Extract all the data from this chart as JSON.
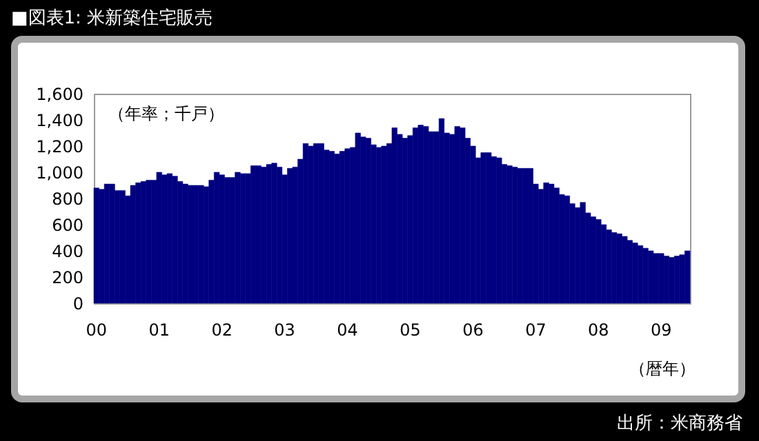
{
  "chart_data": {
    "type": "bar",
    "title": "■図表1: 米新築住宅販売",
    "ylabel": "（年率；千戸）",
    "xlabel": "（暦年）",
    "annotations": [
      "出所：米商務省"
    ],
    "categories": [
      "00",
      null,
      null,
      null,
      null,
      null,
      null,
      null,
      null,
      null,
      null,
      null,
      "01",
      null,
      null,
      null,
      null,
      null,
      null,
      null,
      null,
      null,
      null,
      null,
      "02",
      null,
      null,
      null,
      null,
      null,
      null,
      null,
      null,
      null,
      null,
      null,
      "03",
      null,
      null,
      null,
      null,
      null,
      null,
      null,
      null,
      null,
      null,
      null,
      "04",
      null,
      null,
      null,
      null,
      null,
      null,
      null,
      null,
      null,
      null,
      null,
      "05",
      null,
      null,
      null,
      null,
      null,
      null,
      null,
      null,
      null,
      null,
      null,
      "06",
      null,
      null,
      null,
      null,
      null,
      null,
      null,
      null,
      null,
      null,
      null,
      "07",
      null,
      null,
      null,
      null,
      null,
      null,
      null,
      null,
      null,
      null,
      null,
      "08",
      null,
      null,
      null,
      null,
      null,
      null,
      null,
      null,
      null,
      null,
      null,
      "09",
      null,
      null,
      null,
      null,
      null
    ],
    "values": [
      880,
      870,
      910,
      910,
      860,
      860,
      820,
      900,
      920,
      930,
      940,
      940,
      1000,
      980,
      990,
      970,
      930,
      910,
      900,
      900,
      900,
      890,
      940,
      1000,
      980,
      960,
      960,
      1000,
      990,
      990,
      1050,
      1050,
      1040,
      1060,
      1070,
      1040,
      980,
      1030,
      1040,
      1100,
      1220,
      1200,
      1220,
      1220,
      1170,
      1160,
      1140,
      1160,
      1180,
      1190,
      1300,
      1270,
      1260,
      1210,
      1190,
      1200,
      1220,
      1340,
      1290,
      1260,
      1280,
      1340,
      1360,
      1350,
      1310,
      1310,
      1410,
      1300,
      1290,
      1350,
      1340,
      1260,
      1200,
      1110,
      1150,
      1150,
      1120,
      1110,
      1060,
      1050,
      1040,
      1030,
      1030,
      1030,
      910,
      870,
      920,
      910,
      880,
      830,
      820,
      760,
      730,
      770,
      690,
      660,
      640,
      600,
      560,
      540,
      530,
      510,
      480,
      460,
      440,
      420,
      400,
      380,
      380,
      360,
      350,
      360,
      370,
      400
    ],
    "color": "#000080",
    "ylim": [
      0,
      1600
    ],
    "yticks": [
      0,
      200,
      400,
      600,
      800,
      {
        "value": 1000,
        "label": "1,000"
      },
      {
        "value": 1200,
        "label": "1,200"
      },
      {
        "value": 1400,
        "label": "1,400"
      },
      {
        "value": 1600,
        "label": "1,600"
      }
    ],
    "grid": false,
    "legend": false
  }
}
